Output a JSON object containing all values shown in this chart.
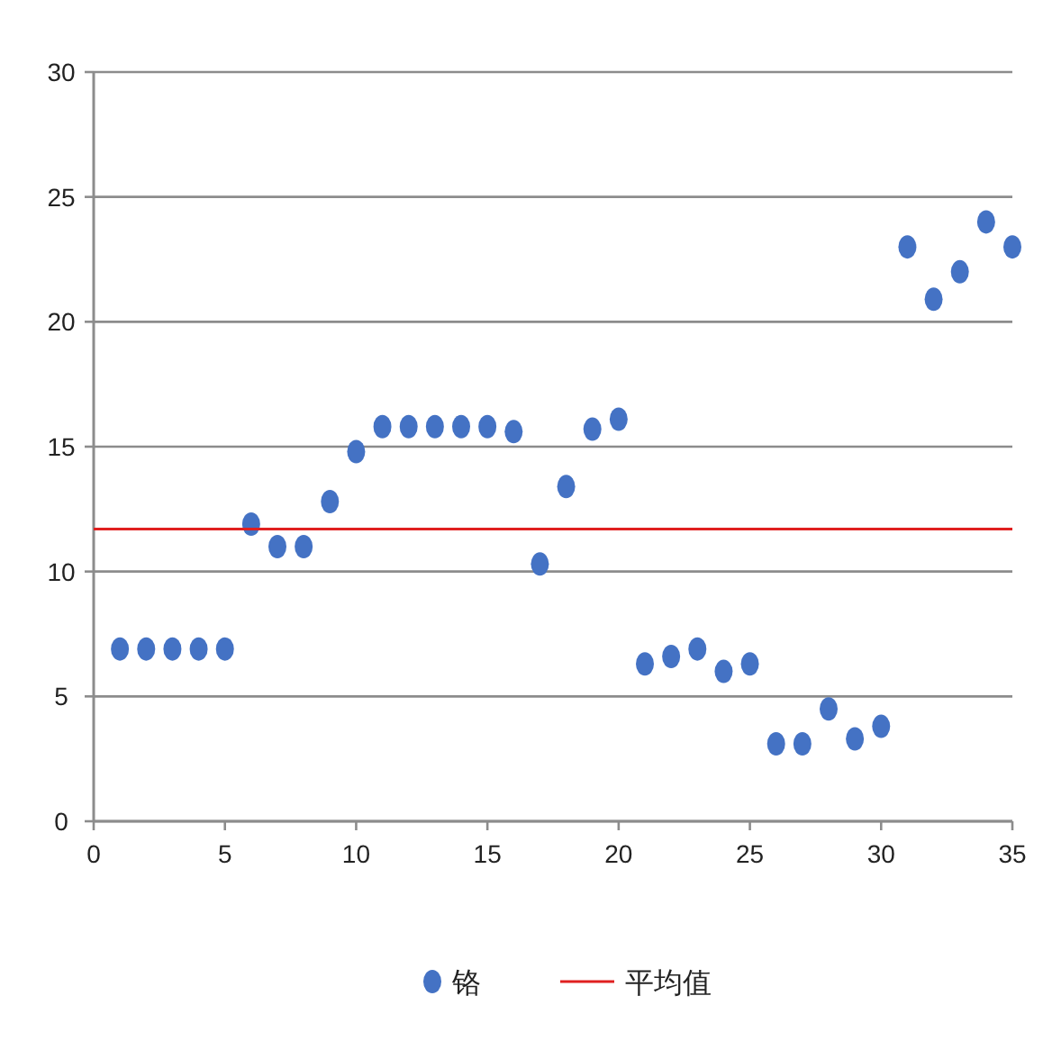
{
  "chart_data": {
    "type": "scatter",
    "xlim": [
      0,
      35
    ],
    "xticks": [
      0,
      5,
      10,
      15,
      20,
      25,
      30,
      35
    ],
    "ylim": [
      0,
      30
    ],
    "yticks": [
      0,
      5,
      10,
      15,
      20,
      25,
      30
    ],
    "grid": "y",
    "legend": "bottom",
    "series": [
      {
        "name": "铬",
        "marker": "circle",
        "color": "#4472c4",
        "x": [
          1,
          2,
          3,
          4,
          5,
          6,
          7,
          8,
          9,
          10,
          11,
          12,
          13,
          14,
          15,
          16,
          17,
          18,
          19,
          20,
          21,
          22,
          23,
          24,
          25,
          26,
          27,
          28,
          29,
          30,
          31,
          32,
          33,
          34,
          35
        ],
        "values": [
          6.9,
          6.9,
          6.9,
          6.9,
          6.9,
          11.9,
          11.0,
          11.0,
          12.8,
          14.8,
          15.8,
          15.8,
          15.8,
          15.8,
          15.8,
          15.6,
          10.3,
          13.4,
          15.7,
          16.1,
          6.3,
          6.6,
          6.9,
          6.0,
          6.3,
          3.1,
          3.1,
          4.5,
          3.3,
          3.8,
          23.0,
          20.9,
          22.0,
          24.0,
          23.0
        ]
      },
      {
        "name": "平均值",
        "type": "line",
        "marker": "none",
        "color": "#e02020",
        "x": [
          0,
          35
        ],
        "values": [
          11.7,
          11.7
        ]
      }
    ]
  }
}
